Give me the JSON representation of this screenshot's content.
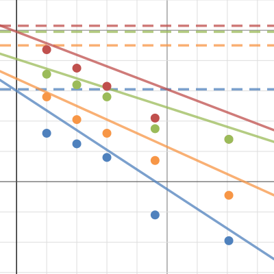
{
  "chart_data": {
    "type": "scatter",
    "title": "",
    "xlabel": "",
    "ylabel": "",
    "xlim": [
      -0.55,
      8.55
    ],
    "ylim": [
      -3.05,
      6.0
    ],
    "grid": true,
    "minor_grid_step": 1,
    "major_grid_step": 5,
    "legend": "none",
    "series": [
      {
        "color": "#c0504d",
        "points": [
          [
            1,
            4.36
          ],
          [
            2,
            3.75
          ],
          [
            3,
            3.15
          ],
          [
            4.6,
            2.1
          ],
          [
            7.05,
            1.4
          ]
        ],
        "fit": {
          "slope": -0.38,
          "intercept": 4.95
        },
        "reference_level": 5.15
      },
      {
        "color": "#9bbb59",
        "points": [
          [
            1,
            3.55
          ],
          [
            2,
            3.2
          ],
          [
            3,
            2.8
          ],
          [
            4.6,
            1.75
          ],
          [
            7.05,
            1.4
          ]
        ],
        "fit": {
          "slope": -0.32,
          "intercept": 4.05
        },
        "reference_level": 4.95
      },
      {
        "color": "#f79646",
        "points": [
          [
            1,
            2.8
          ],
          [
            2,
            2.05
          ],
          [
            3,
            1.6
          ],
          [
            4.6,
            0.7
          ],
          [
            7.05,
            -0.45
          ]
        ],
        "fit": {
          "slope": -0.45,
          "intercept": 3.4
        },
        "reference_level": 4.5
      },
      {
        "color": "#4f81bd",
        "points": [
          [
            1,
            1.6
          ],
          [
            2,
            1.25
          ],
          [
            3,
            0.8
          ],
          [
            4.6,
            -1.1
          ],
          [
            7.05,
            -1.95
          ]
        ],
        "fit": {
          "slope": -0.65,
          "intercept": 3.0
        },
        "reference_level": 3.05
      }
    ]
  }
}
